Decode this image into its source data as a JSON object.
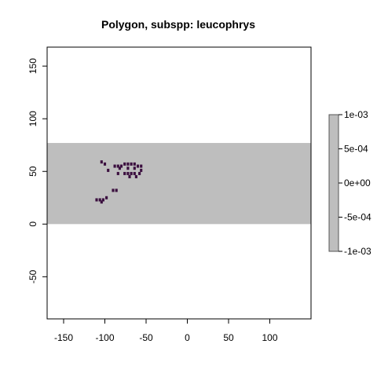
{
  "chart_data": {
    "type": "heatmap",
    "title": "Polygon, subspp: leucophrys",
    "xlabel": "",
    "ylabel": "",
    "xlim": [
      -170,
      150
    ],
    "ylim": [
      -90,
      168
    ],
    "x_ticks": [
      -150,
      -100,
      -50,
      0,
      50,
      100
    ],
    "x_tick_labels": [
      "-150",
      "-100",
      "-50",
      "0",
      "50",
      "100"
    ],
    "y_ticks": [
      -50,
      0,
      50,
      100,
      150
    ],
    "y_tick_labels": [
      "-50",
      "0",
      "50",
      "100",
      "150"
    ],
    "background_band": {
      "ymin": 0,
      "ymax": 77,
      "color": "#bebebe"
    },
    "cell_color": "#3b0f3f",
    "cell_size": 3,
    "cells": [
      [
        -104,
        59
      ],
      [
        -100,
        57
      ],
      [
        -88,
        55
      ],
      [
        -84,
        55
      ],
      [
        -80,
        55
      ],
      [
        -76,
        57
      ],
      [
        -72,
        57
      ],
      [
        -68,
        57
      ],
      [
        -64,
        57
      ],
      [
        -60,
        55
      ],
      [
        -56,
        55
      ],
      [
        -82,
        53
      ],
      [
        -72,
        53
      ],
      [
        -64,
        53
      ],
      [
        -56,
        51
      ],
      [
        -96,
        51
      ],
      [
        -84,
        48
      ],
      [
        -76,
        48
      ],
      [
        -72,
        48
      ],
      [
        -68,
        48
      ],
      [
        -64,
        48
      ],
      [
        -58,
        48
      ],
      [
        -70,
        45
      ],
      [
        -62,
        45
      ],
      [
        -90,
        32
      ],
      [
        -86,
        32
      ],
      [
        -110,
        23
      ],
      [
        -106,
        23
      ],
      [
        -102,
        23
      ],
      [
        -98,
        25
      ],
      [
        -104,
        21
      ]
    ],
    "legend": {
      "position": "right",
      "min": -0.001,
      "max": 0.001,
      "color": "#bebebe",
      "ticks": [
        0.001,
        0.0005,
        0,
        -0.0005,
        -0.001
      ],
      "labels": [
        "1e-03",
        "5e-04",
        "0e+00",
        "-5e-04",
        "-1e-03"
      ]
    }
  }
}
